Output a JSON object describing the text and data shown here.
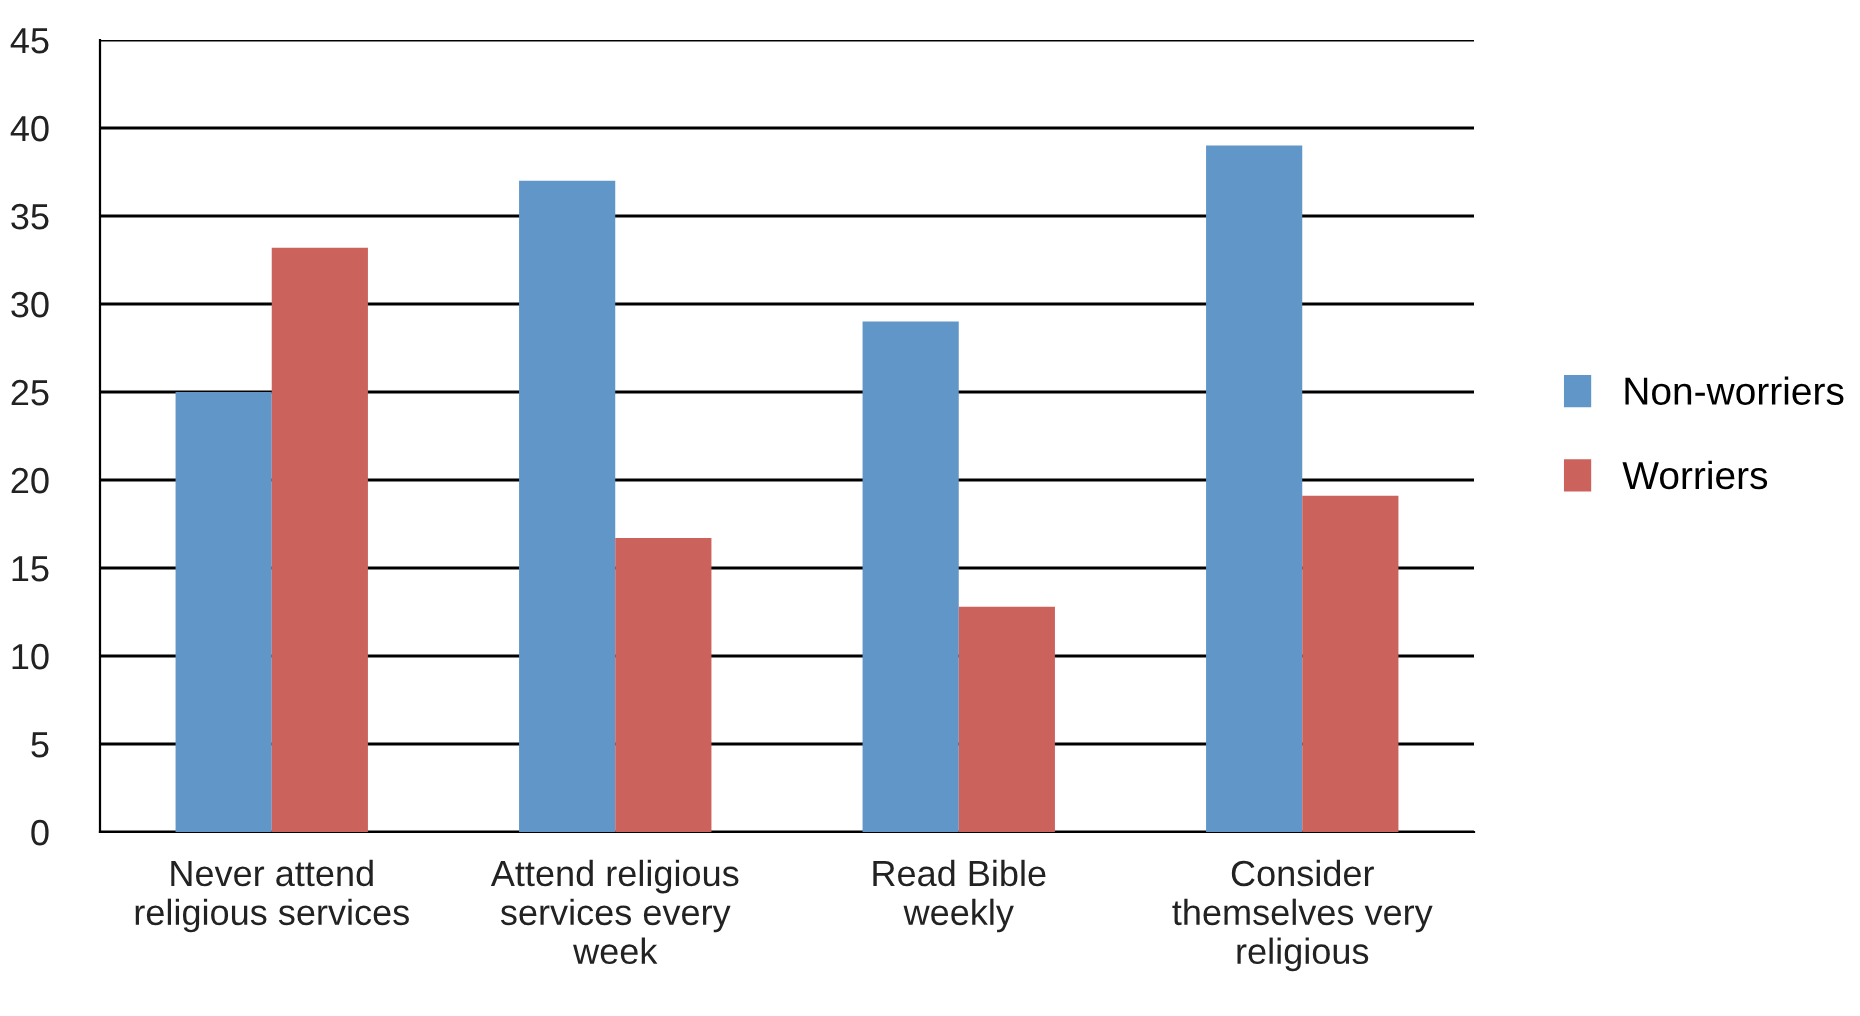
{
  "chart_data": {
    "type": "bar",
    "categories": [
      "Never attend\nreligious services",
      "Attend religious\nservices every\nweek",
      "Read Bible\nweekly",
      "Consider\nthemselves very\nreligious"
    ],
    "series": [
      {
        "name": "Non-worriers",
        "color": "#6096c8",
        "values": [
          25,
          37,
          29,
          39
        ]
      },
      {
        "name": "Worriers",
        "color": "#cb625c",
        "values": [
          33.2,
          16.7,
          12.8,
          19.1
        ]
      }
    ],
    "ylim": [
      0,
      45
    ],
    "yticks": [
      0,
      5,
      10,
      15,
      20,
      25,
      30,
      35,
      40,
      45
    ],
    "grid": "y",
    "legend": "right"
  }
}
